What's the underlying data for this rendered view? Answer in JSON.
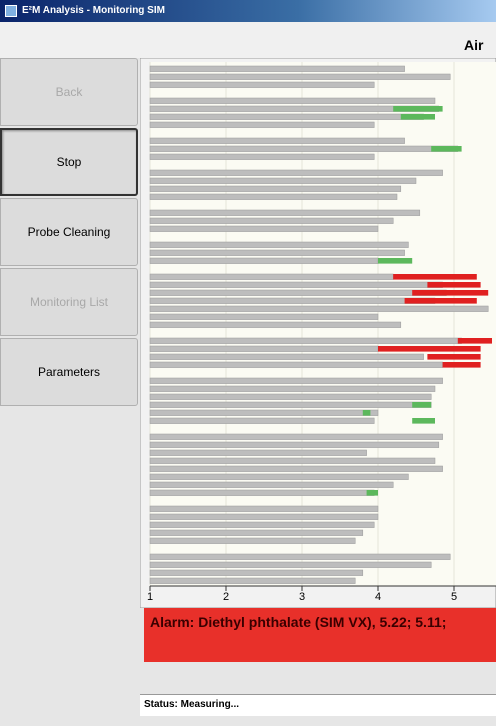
{
  "window": {
    "title": "E²M Analysis - Monitoring SIM"
  },
  "header": {
    "title": "Air"
  },
  "buttons": [
    {
      "label": "Back",
      "state": "disabled"
    },
    {
      "label": "Stop",
      "state": "pressed"
    },
    {
      "label": "Probe Cleaning",
      "state": "normal"
    },
    {
      "label": "Monitoring List",
      "state": "disabled"
    },
    {
      "label": "Parameters",
      "state": "normal"
    }
  ],
  "chart": {
    "type": "bar",
    "xlim": [
      1,
      5.5
    ],
    "xticks": [
      1,
      2,
      3,
      4,
      5
    ],
    "grid": true,
    "gray_bars": {
      "color": "#bdbdbd",
      "ends": [
        4.35,
        4.95,
        3.95,
        null,
        4.75,
        4.8,
        4.6,
        3.95,
        null,
        4.35,
        5.05,
        3.95,
        null,
        4.85,
        4.5,
        4.3,
        4.25,
        null,
        4.55,
        4.2,
        4.0,
        null,
        4.4,
        4.35,
        4.0,
        null,
        4.2,
        4.85,
        4.9,
        4.75,
        5.45,
        4.0,
        4.3,
        null,
        5.1,
        4.0,
        4.6,
        4.85,
        null,
        4.85,
        4.75,
        4.7,
        4.7,
        4.0,
        3.95,
        null,
        4.85,
        4.8,
        3.85,
        4.75,
        4.85,
        4.4,
        4.2,
        3.95,
        null,
        4.0,
        4.0,
        3.95,
        3.8,
        3.7,
        null,
        4.95,
        4.7,
        3.8,
        3.7
      ]
    },
    "green_bars": {
      "color": "#5cb85c",
      "segments": [
        {
          "row": 5,
          "from": 4.2,
          "to": 4.85
        },
        {
          "row": 6,
          "from": 4.3,
          "to": 4.75
        },
        {
          "row": 10,
          "from": 4.7,
          "to": 5.1
        },
        {
          "row": 24,
          "from": 4.0,
          "to": 4.45
        },
        {
          "row": 42,
          "from": 4.45,
          "to": 4.7
        },
        {
          "row": 43,
          "from": 3.8,
          "to": 3.9
        },
        {
          "row": 44,
          "from": 4.45,
          "to": 4.75
        },
        {
          "row": 53,
          "from": 3.85,
          "to": 4.0
        }
      ]
    },
    "red_bars": {
      "color": "#e02020",
      "segments": [
        {
          "row": 26,
          "from": 4.2,
          "to": 5.3
        },
        {
          "row": 27,
          "from": 4.65,
          "to": 5.35
        },
        {
          "row": 28,
          "from": 4.45,
          "to": 5.45
        },
        {
          "row": 29,
          "from": 4.35,
          "to": 5.3
        },
        {
          "row": 34,
          "from": 5.05,
          "to": 5.5
        },
        {
          "row": 35,
          "from": 4.0,
          "to": 5.35
        },
        {
          "row": 36,
          "from": 4.65,
          "to": 5.35
        },
        {
          "row": 37,
          "from": 4.85,
          "to": 5.35
        }
      ]
    }
  },
  "alarm": {
    "text": "Alarm: Diethyl phthalate (SIM VX), 5.22; 5.11;"
  },
  "status": {
    "text": "Status: Measuring..."
  }
}
